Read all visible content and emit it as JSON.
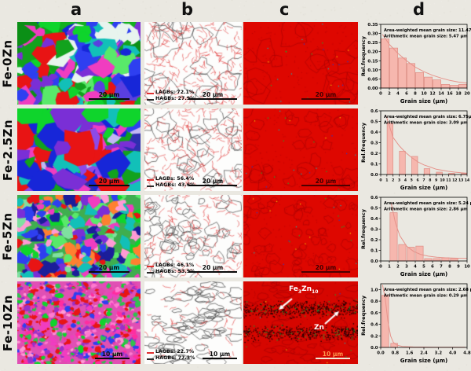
{
  "colors": {
    "background": "#eae8e1",
    "bar_fill": "#f6b7ae",
    "bar_edge": "#dd8d84",
    "curve": "#e6938b",
    "lagb_red": "#e03030",
    "hagb_black": "#2a2a2a",
    "phase_red": "#de0700"
  },
  "headers": [
    "a",
    "b",
    "c",
    "d"
  ],
  "rows": [
    {
      "label": "Fe-0Zn",
      "panel_a": {
        "scale": "20 μm"
      },
      "panel_b": {
        "lagb": "LAGBs: 72.1%",
        "hagb": "HAGBs: 27.9%",
        "scale": "20 μm"
      },
      "panel_c": {
        "scale": "20 μm"
      }
    },
    {
      "label": "Fe-2.5Zn",
      "panel_a": {
        "scale": "20 μm"
      },
      "panel_b": {
        "lagb": "LAGBs: 56.4%",
        "hagb": "HAGBs: 43.6%",
        "scale": "20 μm"
      },
      "panel_c": {
        "scale": "20 μm"
      }
    },
    {
      "label": "Fe-5Zn",
      "panel_a": {
        "scale": "20 μm"
      },
      "panel_b": {
        "lagb": "LAGBs: 46.1%",
        "hagb": "HAGBs: 53.9%",
        "scale": "20 μm"
      },
      "panel_c": {
        "scale": "20 μm"
      }
    },
    {
      "label": "Fe-10Zn",
      "panel_a": {
        "scale": "10 μm"
      },
      "panel_b": {
        "lagb": "LAGBs: 22.7%",
        "hagb": "HAGBs: 77.3%",
        "scale": "10 μm"
      },
      "panel_c": {
        "scale": "10 μm",
        "phase1": {
          "pre": "Fe",
          "sub1": "3",
          "mid": "Zn",
          "sub2": "10"
        },
        "phase2": "Zn"
      }
    }
  ],
  "chart_data": [
    {
      "type": "bar",
      "row": "Fe-0Zn",
      "annotation_line1": "Area-weighted mean grain size: 11.47 μm",
      "annotation_line2": "Arithmetic mean grain size: 5.47 μm",
      "xlabel": "Grain size (μm)",
      "ylabel": "Rel.frequency",
      "xlim": [
        0,
        20
      ],
      "ylim": [
        0,
        0.35
      ],
      "xticks": [
        0,
        2,
        4,
        6,
        8,
        10,
        12,
        14,
        16,
        18,
        20
      ],
      "yticks": [
        0,
        0.05,
        0.1,
        0.15,
        0.2,
        0.25,
        0.3,
        0.35
      ],
      "xdec": 0,
      "ydec": 2,
      "bar_width": 1.85,
      "bars": [
        {
          "x": 1,
          "v": 0.27
        },
        {
          "x": 3,
          "v": 0.22
        },
        {
          "x": 5,
          "v": 0.165
        },
        {
          "x": 7,
          "v": 0.135
        },
        {
          "x": 9,
          "v": 0.085
        },
        {
          "x": 11,
          "v": 0.06
        },
        {
          "x": 13,
          "v": 0.045
        },
        {
          "x": 15,
          "v": 0.02
        },
        {
          "x": 17,
          "v": 0.015
        },
        {
          "x": 19,
          "v": 0.02
        }
      ],
      "curve": [
        [
          0.4,
          0.295
        ],
        [
          2,
          0.24
        ],
        [
          4,
          0.19
        ],
        [
          6,
          0.15
        ],
        [
          8,
          0.115
        ],
        [
          10,
          0.09
        ],
        [
          12,
          0.07
        ],
        [
          14,
          0.055
        ],
        [
          16,
          0.042
        ],
        [
          18,
          0.033
        ],
        [
          20,
          0.027
        ]
      ]
    },
    {
      "type": "bar",
      "row": "Fe-2.5Zn",
      "annotation_line1": "Area-weighted mean grain size: 6.75μm",
      "annotation_line2": "Arithmetic mean grain size: 3.09 μm",
      "xlabel": "Grain size (μm)",
      "ylabel": "Rel.frequency",
      "xlim": [
        0,
        14
      ],
      "ylim": [
        0,
        0.6
      ],
      "xticks": [
        0,
        1,
        2,
        3,
        4,
        5,
        6,
        7,
        8,
        9,
        10,
        11,
        12,
        13,
        14
      ],
      "yticks": [
        0,
        0.1,
        0.2,
        0.3,
        0.4,
        0.5,
        0.6
      ],
      "xdec": 0,
      "ydec": 1,
      "xtick_font": 4.6,
      "bar_width": 0.95,
      "bars": [
        {
          "x": 1.5,
          "v": 0.485
        },
        {
          "x": 3.5,
          "v": 0.22
        },
        {
          "x": 5.5,
          "v": 0.17
        },
        {
          "x": 7.5,
          "v": 0.055
        },
        {
          "x": 9.5,
          "v": 0.022
        },
        {
          "x": 11.5,
          "v": 0.012
        },
        {
          "x": 13.5,
          "v": 0.008
        }
      ],
      "curve": [
        [
          0.9,
          0.55
        ],
        [
          2,
          0.35
        ],
        [
          3,
          0.27
        ],
        [
          4,
          0.21
        ],
        [
          5,
          0.16
        ],
        [
          6,
          0.12
        ],
        [
          7,
          0.09
        ],
        [
          8,
          0.07
        ],
        [
          9,
          0.05
        ],
        [
          10,
          0.04
        ],
        [
          11,
          0.03
        ],
        [
          12,
          0.022
        ],
        [
          13,
          0.016
        ],
        [
          14,
          0.012
        ]
      ]
    },
    {
      "type": "bar",
      "row": "Fe-5Zn",
      "annotation_line1": "Area-weighted mean grain size: 5.24 μm",
      "annotation_line2": "Arithmetic mean grain size: 2.86 μm",
      "xlabel": "Grain size (μm)",
      "ylabel": "Rel.frequency",
      "xlim": [
        0,
        10
      ],
      "ylim": [
        0,
        0.6
      ],
      "xticks": [
        0,
        1,
        2,
        3,
        4,
        5,
        6,
        7,
        8,
        9,
        10
      ],
      "yticks": [
        0,
        0.1,
        0.2,
        0.3,
        0.4,
        0.5,
        0.6
      ],
      "xdec": 0,
      "ydec": 1,
      "bar_width": 0.85,
      "bars": [
        {
          "x": 1.5,
          "v": 0.455
        },
        {
          "x": 2.5,
          "v": 0.155
        },
        {
          "x": 3.5,
          "v": 0.13
        },
        {
          "x": 4.5,
          "v": 0.14
        },
        {
          "x": 5.5,
          "v": 0.022
        },
        {
          "x": 6.5,
          "v": 0.022
        },
        {
          "x": 7.5,
          "v": 0.03
        },
        {
          "x": 8.5,
          "v": 0.022
        }
      ],
      "curve": [
        [
          1.2,
          0.55
        ],
        [
          1.7,
          0.36
        ],
        [
          2.2,
          0.24
        ],
        [
          3,
          0.14
        ],
        [
          3.8,
          0.09
        ],
        [
          4.6,
          0.062
        ],
        [
          5.5,
          0.045
        ],
        [
          6.5,
          0.035
        ],
        [
          7.5,
          0.03
        ],
        [
          8.5,
          0.027
        ],
        [
          9.5,
          0.025
        ],
        [
          10,
          0.024
        ]
      ]
    },
    {
      "type": "bar",
      "row": "Fe-10Zn",
      "annotation_line1": "Area-weighted mean grain size: 2.68 μm",
      "annotation_line2": "Arithmetic mean grain size: 0.29 μm",
      "xlabel": "Grain size (μm)",
      "ylabel": "Rel.frequency",
      "xlim": [
        0,
        4.8
      ],
      "ylim": [
        0,
        1.1
      ],
      "xticks": [
        0.0,
        0.8,
        1.6,
        2.4,
        3.2,
        4.0,
        4.8
      ],
      "yticks": [
        0,
        0.2,
        0.4,
        0.6,
        0.8,
        1.0
      ],
      "xdec": 1,
      "ydec": 1,
      "bar_width": 0.38,
      "bars": [
        {
          "x": 0.25,
          "v": 0.9
        },
        {
          "x": 0.75,
          "v": 0.07
        }
      ],
      "curve": [
        [
          0.1,
          1.08
        ],
        [
          0.25,
          0.85
        ],
        [
          0.4,
          0.45
        ],
        [
          0.55,
          0.2
        ],
        [
          0.7,
          0.09
        ],
        [
          0.9,
          0.04
        ],
        [
          1.2,
          0.018
        ],
        [
          1.8,
          0.008
        ],
        [
          3,
          0.004
        ],
        [
          4.7,
          0.003
        ]
      ]
    }
  ]
}
